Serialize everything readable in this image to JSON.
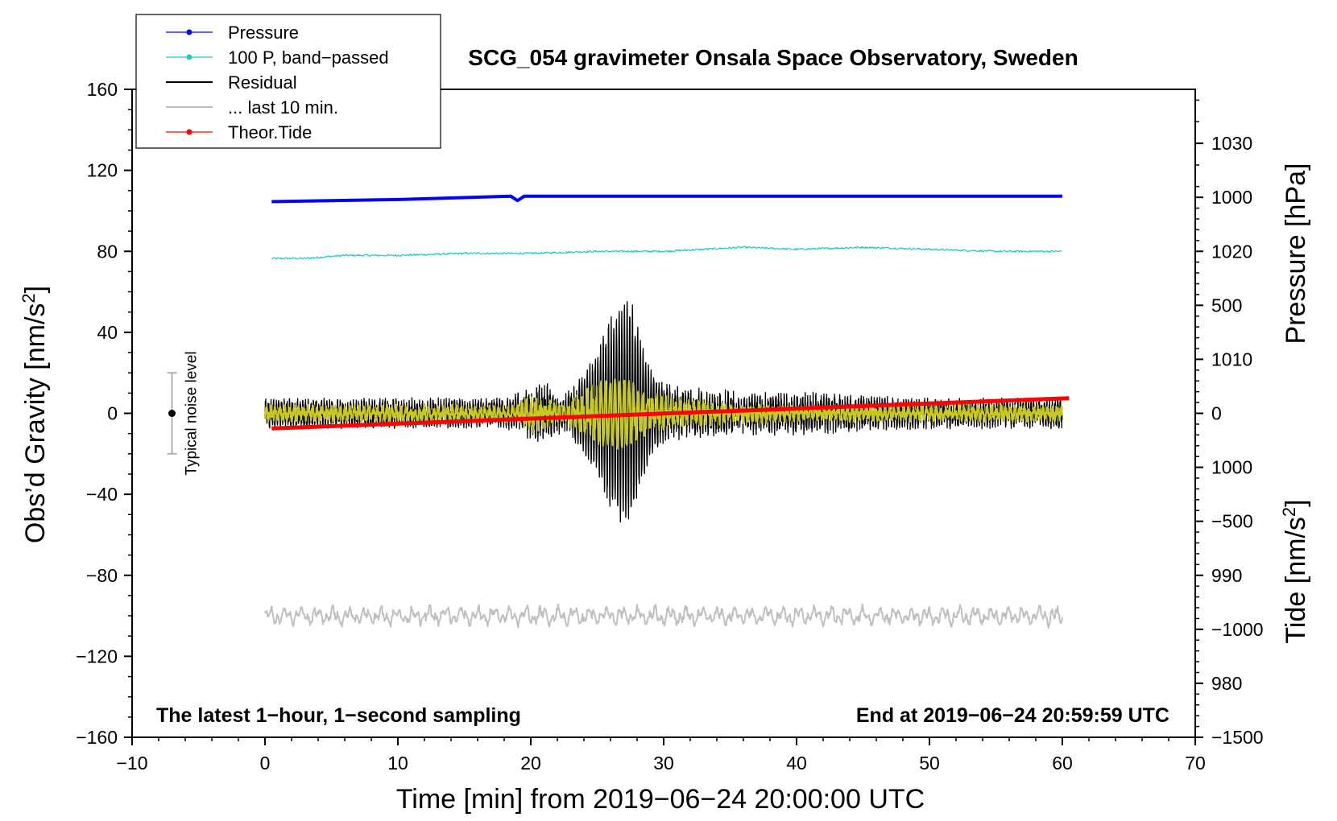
{
  "chart_data": {
    "type": "line",
    "title": "SCG_054 gravimeter Onsala Space Observatory, Sweden",
    "xlabel": "Time [min] from 2019−06−24 20:00:00 UTC",
    "ylabel": "Obs’d Gravity [nm/s",
    "ylabel_sup": "2",
    "ylabel_end": "]",
    "y2label_pressure": "Pressure [hPa]",
    "y2label_tide": "Tide [nm/s",
    "y2label_tide_sup": "2",
    "y2label_tide_end": "]",
    "xlim": [
      -10,
      70
    ],
    "ylim": [
      -160,
      160
    ],
    "pressure_lim": [
      975,
      1035
    ],
    "tide_lim": [
      -1500,
      1500
    ],
    "x_ticks": [
      "−10",
      "0",
      "10",
      "20",
      "30",
      "40",
      "50",
      "60",
      "70"
    ],
    "x_tick_values": [
      -10,
      0,
      10,
      20,
      30,
      40,
      50,
      60,
      70
    ],
    "y_ticks": [
      "160",
      "120",
      "80",
      "40",
      "0",
      "−40",
      "−80",
      "−120",
      "−160"
    ],
    "y_tick_values": [
      160,
      120,
      80,
      40,
      0,
      -40,
      -80,
      -120,
      -160
    ],
    "pressure_ticks": [
      "1030",
      "1020",
      "1010",
      "1000",
      "990",
      "980"
    ],
    "pressure_tick_values": [
      1030,
      1020,
      1010,
      1000,
      990,
      980
    ],
    "tide_ticks": [
      "1000",
      "500",
      "0",
      "−500",
      "−1000",
      "−1500"
    ],
    "tide_tick_values": [
      1000,
      500,
      0,
      -500,
      -1000,
      -1500
    ],
    "legend": [
      {
        "label": "Pressure",
        "color": "#0000ff",
        "marker": true
      },
      {
        "label": "100 P, band−passed",
        "color": "#20c8c8",
        "marker": true
      },
      {
        "label": "Residual",
        "color": "#000000",
        "marker": false
      },
      {
        "label": "... last 10 min.",
        "color": "#c0c0c0",
        "marker": false
      },
      {
        "label": "Theor.Tide",
        "color": "#ff0000",
        "marker": true
      }
    ],
    "annotations": {
      "left_note": "The latest 1−hour, 1−second sampling",
      "right_note": "End at 2019−06−24 20:59:59 UTC",
      "noise_label": "Typical noise level",
      "noise_level": [
        -20,
        20
      ]
    },
    "series": [
      {
        "name": "Pressure",
        "axis": "pressure",
        "color": "#0000ff",
        "x": [
          0.5,
          10,
          18.5,
          19,
          19.5,
          30,
          45,
          60
        ],
        "y": [
          1024.6,
          1024.8,
          1025.1,
          1024.7,
          1025.1,
          1025.1,
          1025.1,
          1025.1
        ]
      },
      {
        "name": "100 P, band-passed",
        "axis": "gravity",
        "color": "#20c8c8",
        "x": [
          0.5,
          3,
          6,
          10,
          15,
          20,
          25,
          30,
          33,
          36,
          40,
          45,
          50,
          55,
          60
        ],
        "y": [
          76.5,
          76.5,
          78,
          78,
          79,
          79,
          80,
          80,
          81,
          82,
          81,
          82,
          81,
          80,
          80
        ]
      },
      {
        "name": "Residual",
        "axis": "gravity",
        "color": "#000000",
        "x_range": [
          0,
          60
        ],
        "envelope_x": [
          0,
          18,
          20,
          21,
          22.5,
          24,
          25,
          26,
          27,
          27.5,
          28,
          29,
          30,
          32,
          36,
          40,
          50,
          60
        ],
        "envelope_y": [
          7,
          7,
          12,
          15,
          8,
          20,
          32,
          50,
          58,
          58,
          45,
          22,
          14,
          12,
          10,
          10,
          7,
          7
        ]
      },
      {
        "name": "Residual (smoothed)",
        "axis": "gravity",
        "color": "#c8c820",
        "x_range": [
          0,
          60
        ],
        "envelope_x": [
          0,
          19,
          20,
          21,
          22.5,
          24,
          25.5,
          27,
          28.5,
          30,
          35,
          40,
          60
        ],
        "envelope_y": [
          4,
          4,
          10,
          7,
          4,
          12,
          18,
          19,
          13,
          8,
          5,
          4,
          4
        ]
      },
      {
        "name": "Theor.Tide",
        "axis": "tide",
        "color": "#ff0000",
        "x": [
          0.5,
          60.5
        ],
        "y": [
          -70,
          70
        ]
      },
      {
        "name": "... last 10 min.",
        "axis": "gravity",
        "color": "#c0c0c0",
        "x_range": [
          0,
          60
        ],
        "center": -100,
        "amplitude": 4
      }
    ]
  }
}
